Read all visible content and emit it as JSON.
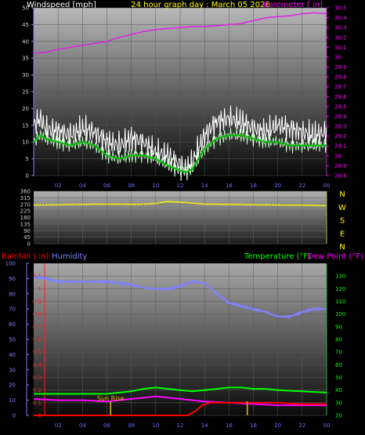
{
  "chart_data": [
    {
      "id": "wind_baro",
      "type": "line",
      "title": "24 hour graph day : March 05 2026",
      "left_axis_label": "Windspeed [mph]",
      "right_axis_label": "Barometer [ in]",
      "x_ticks": [
        "02",
        "04",
        "06",
        "08",
        "10",
        "12",
        "14",
        "16",
        "18",
        "20",
        "22",
        "00"
      ],
      "left_ylim": [
        0,
        50
      ],
      "left_ticks": [
        0,
        5,
        10,
        15,
        20,
        25,
        30,
        35,
        40,
        45,
        50
      ],
      "right_ylim": [
        28.8,
        30.5
      ],
      "right_ticks": [
        "28.8",
        "28.9",
        "29",
        "29.1",
        "29.2",
        "29.3",
        "29.4",
        "29.5",
        "29.6",
        "29.7",
        "29.8",
        "29.9",
        "30",
        "30.1",
        "30.2",
        "30.3",
        "30.4",
        "30.5"
      ],
      "series": [
        {
          "name": "Barometer",
          "axis": "right",
          "color": "#e020e0",
          "points": [
            [
              0,
              30.04
            ],
            [
              1,
              30.05
            ],
            [
              2,
              30.08
            ],
            [
              3,
              30.1
            ],
            [
              4,
              30.12
            ],
            [
              5,
              30.14
            ],
            [
              6,
              30.16
            ],
            [
              7,
              30.2
            ],
            [
              8,
              30.23
            ],
            [
              9,
              30.26
            ],
            [
              10,
              30.28
            ],
            [
              11,
              30.29
            ],
            [
              12,
              30.3
            ],
            [
              13,
              30.31
            ],
            [
              14,
              30.31
            ],
            [
              15,
              30.32
            ],
            [
              16,
              30.33
            ],
            [
              17,
              30.34
            ],
            [
              18,
              30.37
            ],
            [
              19,
              30.4
            ],
            [
              20,
              30.41
            ],
            [
              21,
              30.42
            ],
            [
              22,
              30.44
            ],
            [
              23,
              30.45
            ],
            [
              24,
              30.44
            ]
          ]
        },
        {
          "name": "Gust",
          "axis": "left",
          "color": "#ffffff",
          "points": [
            [
              0,
              15
            ],
            [
              0.5,
              17
            ],
            [
              1,
              14
            ],
            [
              2,
              13
            ],
            [
              3,
              12
            ],
            [
              4,
              14
            ],
            [
              5,
              13
            ],
            [
              6,
              10
            ],
            [
              7,
              9
            ],
            [
              8,
              11
            ],
            [
              9,
              10
            ],
            [
              10,
              7
            ],
            [
              11,
              6
            ],
            [
              12,
              3
            ],
            [
              12.5,
              2
            ],
            [
              13,
              4
            ],
            [
              14,
              12
            ],
            [
              15,
              16
            ],
            [
              16,
              17
            ],
            [
              17,
              16
            ],
            [
              18,
              14
            ],
            [
              19,
              13
            ],
            [
              20,
              15
            ],
            [
              21,
              14
            ],
            [
              22,
              13
            ],
            [
              23,
              12
            ],
            [
              24,
              13
            ]
          ]
        },
        {
          "name": "Wind average",
          "axis": "left",
          "color": "#00c000",
          "points": [
            [
              0,
              10
            ],
            [
              0.5,
              12
            ],
            [
              1,
              11
            ],
            [
              2,
              10
            ],
            [
              3,
              9
            ],
            [
              4,
              10
            ],
            [
              5,
              9
            ],
            [
              6,
              6
            ],
            [
              7,
              5
            ],
            [
              8,
              6
            ],
            [
              9,
              6
            ],
            [
              10,
              5
            ],
            [
              11,
              3
            ],
            [
              12,
              1.5
            ],
            [
              12.5,
              1
            ],
            [
              13,
              2
            ],
            [
              14,
              8
            ],
            [
              15,
              11
            ],
            [
              16,
              12
            ],
            [
              17,
              12
            ],
            [
              18,
              11
            ],
            [
              19,
              10
            ],
            [
              20,
              10
            ],
            [
              21,
              9
            ],
            [
              22,
              9
            ],
            [
              23,
              9
            ],
            [
              24,
              9
            ]
          ]
        }
      ]
    },
    {
      "id": "direction",
      "type": "line",
      "x_ticks": [
        "02",
        "04",
        "06",
        "08",
        "10",
        "12",
        "14",
        "16",
        "18",
        "20",
        "22",
        "00"
      ],
      "ylim": [
        0,
        360
      ],
      "ticks": [
        0,
        45,
        90,
        135,
        180,
        225,
        270,
        315,
        360
      ],
      "compass": [
        "N",
        "W",
        "S",
        "E",
        "N"
      ],
      "series": [
        {
          "name": "Wind direction",
          "color": "#ffff00",
          "points": [
            [
              0,
              265
            ],
            [
              2,
              268
            ],
            [
              4,
              270
            ],
            [
              6,
              272
            ],
            [
              8,
              270
            ],
            [
              10,
              275
            ],
            [
              11,
              290
            ],
            [
              12,
              285
            ],
            [
              13,
              278
            ],
            [
              14,
              272
            ],
            [
              16,
              270
            ],
            [
              18,
              268
            ],
            [
              20,
              266
            ],
            [
              22,
              265
            ],
            [
              24,
              262
            ]
          ]
        }
      ]
    },
    {
      "id": "rain_hum_temp",
      "type": "line",
      "left_axis_label_1": "Rainfall (.in)",
      "left_axis_label_2": "Humidity",
      "right_axis_label_1": "Temperature (°F)",
      "right_axis_label_2": "Dew Point (°F)",
      "annotation": "Sun Rise",
      "x_ticks": [
        "02",
        "04",
        "06",
        "08",
        "10",
        "12",
        "14",
        "16",
        "18",
        "20",
        "22",
        "00"
      ],
      "humidity_ylim": [
        0,
        100
      ],
      "humidity_ticks": [
        0,
        10,
        20,
        30,
        40,
        50,
        60,
        70,
        80,
        90,
        100
      ],
      "rain_ylim": [
        0,
        1.2
      ],
      "rain_ticks": [
        "0",
        "0.1",
        "0.2",
        "0.3",
        "0.4",
        "0.5",
        "0.6",
        "0.7",
        "0.8",
        "0.9",
        "1",
        "1.1"
      ],
      "temp_ylim": [
        20,
        140
      ],
      "temp_ticks": [
        20,
        30,
        40,
        50,
        60,
        70,
        80,
        90,
        100,
        110,
        120,
        130
      ],
      "sun_rise_hour": 6.3,
      "sun_set_hour": 17.5,
      "series": [
        {
          "name": "Humidity",
          "axis": "humidity",
          "color": "#8080ff",
          "points": [
            [
              0,
              91
            ],
            [
              1,
              90
            ],
            [
              2,
              88
            ],
            [
              3,
              88
            ],
            [
              4,
              88
            ],
            [
              5,
              88
            ],
            [
              6,
              88
            ],
            [
              7,
              87
            ],
            [
              8,
              86
            ],
            [
              9,
              84
            ],
            [
              10,
              83
            ],
            [
              11,
              83
            ],
            [
              12,
              85
            ],
            [
              13,
              88
            ],
            [
              14,
              87
            ],
            [
              15,
              80
            ],
            [
              16,
              74
            ],
            [
              17,
              72
            ],
            [
              18,
              70
            ],
            [
              19,
              68
            ],
            [
              20,
              65
            ],
            [
              21,
              65
            ],
            [
              22,
              68
            ],
            [
              23,
              70
            ],
            [
              24,
              70
            ]
          ]
        },
        {
          "name": "Temperature",
          "axis": "temp",
          "color": "#00ff00",
          "points": [
            [
              0,
              37
            ],
            [
              2,
              37
            ],
            [
              4,
              37
            ],
            [
              6,
              37
            ],
            [
              7,
              38
            ],
            [
              8,
              39
            ],
            [
              9,
              41
            ],
            [
              10,
              42
            ],
            [
              11,
              41
            ],
            [
              12,
              40
            ],
            [
              13,
              39
            ],
            [
              14,
              40
            ],
            [
              15,
              41
            ],
            [
              16,
              42
            ],
            [
              17,
              42
            ],
            [
              18,
              41
            ],
            [
              19,
              41
            ],
            [
              20,
              40
            ],
            [
              22,
              39
            ],
            [
              24,
              38
            ]
          ]
        },
        {
          "name": "Dew Point",
          "axis": "temp",
          "color": "#ff00ff",
          "points": [
            [
              0,
              33
            ],
            [
              2,
              32
            ],
            [
              4,
              32
            ],
            [
              6,
              31
            ],
            [
              7,
              32
            ],
            [
              8,
              33
            ],
            [
              9,
              34
            ],
            [
              10,
              35
            ],
            [
              11,
              34
            ],
            [
              12,
              33
            ],
            [
              13,
              32
            ],
            [
              14,
              31
            ],
            [
              16,
              30
            ],
            [
              18,
              29
            ],
            [
              20,
              28
            ],
            [
              22,
              28
            ],
            [
              24,
              28
            ]
          ]
        },
        {
          "name": "Rainfall",
          "axis": "rain",
          "color": "#ff0000",
          "points": [
            [
              0,
              0
            ],
            [
              12.6,
              0
            ],
            [
              13.2,
              0.03
            ],
            [
              13.8,
              0.08
            ],
            [
              14.5,
              0.1
            ],
            [
              17,
              0.1
            ],
            [
              20,
              0.1
            ],
            [
              22,
              0.09
            ],
            [
              24,
              0.09
            ]
          ]
        }
      ]
    }
  ],
  "colors": {
    "windspeed_label": "#ffffff",
    "title": "#ffff00",
    "barometer_label": "#ff00ff",
    "compass": "#ffff00",
    "rainfall_label": "#ff0000",
    "humidity_label": "#8080ff",
    "temperature_label": "#00ff00",
    "dewpoint_label": "#ff00ff"
  }
}
